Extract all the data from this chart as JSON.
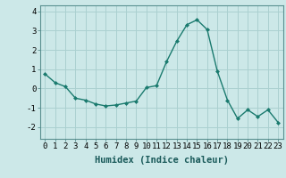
{
  "x": [
    0,
    1,
    2,
    3,
    4,
    5,
    6,
    7,
    8,
    9,
    10,
    11,
    12,
    13,
    14,
    15,
    16,
    17,
    18,
    19,
    20,
    21,
    22,
    23
  ],
  "y": [
    0.75,
    0.3,
    0.1,
    -0.5,
    -0.6,
    -0.8,
    -0.9,
    -0.85,
    -0.75,
    -0.65,
    0.05,
    0.15,
    1.4,
    2.45,
    3.3,
    3.55,
    3.05,
    0.9,
    -0.6,
    -1.55,
    -1.1,
    -1.45,
    -1.1,
    -1.75
  ],
  "line_color": "#1a7a6e",
  "marker": "D",
  "marker_size": 2,
  "bg_color": "#cce8e8",
  "grid_color": "#aad0d0",
  "xlabel": "Humidex (Indice chaleur)",
  "ylim": [
    -2.6,
    4.3
  ],
  "xlim": [
    -0.5,
    23.5
  ],
  "yticks": [
    -2,
    -1,
    0,
    1,
    2,
    3,
    4
  ],
  "xticks": [
    0,
    1,
    2,
    3,
    4,
    5,
    6,
    7,
    8,
    9,
    10,
    11,
    12,
    13,
    14,
    15,
    16,
    17,
    18,
    19,
    20,
    21,
    22,
    23
  ],
  "xlabel_fontsize": 7.5,
  "tick_fontsize": 6.5,
  "linewidth": 1.0
}
